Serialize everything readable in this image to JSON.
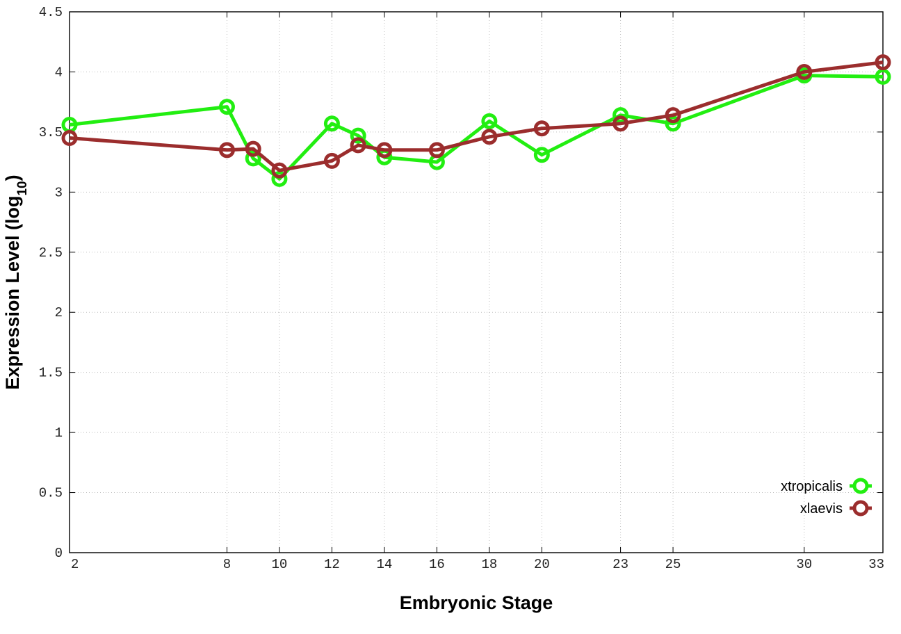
{
  "chart_data": {
    "type": "line",
    "title": "",
    "xlabel": "Embryonic Stage",
    "ylabel": "Expression Level",
    "ylabel_sub": "10",
    "ylabel_prefix": "Expression Level (log",
    "ylabel_suffix": ")",
    "x_ticks": [
      "2",
      "8",
      "10",
      "12",
      "14",
      "16",
      "18",
      "20",
      "23",
      "25",
      "30",
      "33"
    ],
    "y_ticks": [
      "0",
      "0.5",
      "1",
      "1.5",
      "2",
      "2.5",
      "3",
      "3.5",
      "4",
      "4.5"
    ],
    "ylim": [
      0,
      4.5
    ],
    "grid": true,
    "legend_position": "bottom-right",
    "series": [
      {
        "name": "xtropicalis",
        "color": "#22ee11",
        "x": [
          2,
          8,
          9,
          10,
          12,
          13,
          14,
          16,
          18,
          20,
          23,
          25,
          30,
          33
        ],
        "values": [
          3.56,
          3.71,
          3.28,
          3.11,
          3.57,
          3.47,
          3.29,
          3.25,
          3.59,
          3.31,
          3.64,
          3.57,
          3.97,
          3.96
        ]
      },
      {
        "name": "xlaevis",
        "color": "#9b2d2d",
        "x": [
          2,
          8,
          9,
          10,
          12,
          13,
          14,
          16,
          18,
          20,
          23,
          25,
          30,
          33
        ],
        "values": [
          3.45,
          3.35,
          3.36,
          3.18,
          3.26,
          3.39,
          3.35,
          3.35,
          3.46,
          3.53,
          3.57,
          3.64,
          4.0,
          4.08
        ]
      }
    ]
  }
}
